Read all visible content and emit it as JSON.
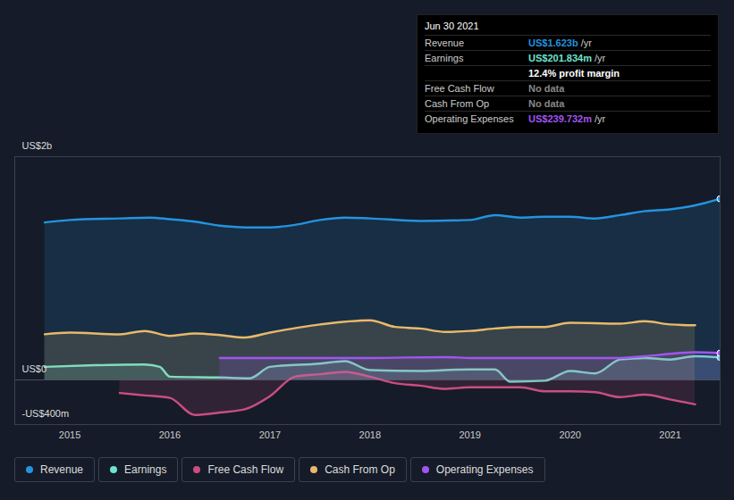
{
  "chart_data": {
    "type": "line",
    "grid": true,
    "legend": "bottom",
    "xlim": [
      2014.45,
      2021.5
    ],
    "xticks": [
      2015,
      2016,
      2017,
      2018,
      2019,
      2020,
      2021
    ],
    "ylim": [
      -400,
      2000
    ],
    "yticks": [
      {
        "value": 2000,
        "label": "US$2b"
      },
      {
        "value": 0,
        "label": "US$0"
      },
      {
        "value": -400,
        "label": "-US$400m"
      }
    ],
    "series": [
      {
        "name": "Revenue",
        "color": "#2394df",
        "x": [
          2014.75,
          2015,
          2015.5,
          2015.8,
          2016,
          2016.25,
          2016.5,
          2016.75,
          2017,
          2017.25,
          2017.5,
          2017.75,
          2018,
          2018.5,
          2019,
          2019.25,
          2019.5,
          2019.75,
          2020,
          2020.25,
          2020.5,
          2020.75,
          2021,
          2021.25,
          2021.5
        ],
        "values": [
          1411,
          1433,
          1447,
          1455,
          1440,
          1418,
          1382,
          1367,
          1367,
          1389,
          1433,
          1455,
          1447,
          1425,
          1433,
          1477,
          1455,
          1462,
          1462,
          1447,
          1477,
          1513,
          1528,
          1564,
          1623
        ]
      },
      {
        "name": "Earnings",
        "color": "#6fe3cf",
        "x": [
          2014.75,
          2015.25,
          2015.75,
          2015.9,
          2016,
          2016.5,
          2016.8,
          2017,
          2017.5,
          2017.75,
          2018,
          2018.5,
          2019,
          2019.25,
          2019.4,
          2019.75,
          2020,
          2020.25,
          2020.5,
          2020.75,
          2021,
          2021.25,
          2021.5
        ],
        "values": [
          117,
          132,
          139,
          117,
          29,
          22,
          15,
          117,
          146,
          168,
          88,
          80,
          95,
          95,
          -15,
          -7,
          80,
          58,
          183,
          197,
          183,
          212,
          202
        ]
      },
      {
        "name": "Free Cash Flow",
        "color": "#c94e80",
        "x": [
          2015.5,
          2015.75,
          2016,
          2016.25,
          2016.5,
          2016.75,
          2017,
          2017.25,
          2017.5,
          2017.75,
          2018,
          2018.25,
          2018.5,
          2018.75,
          2019,
          2019.5,
          2019.75,
          2020,
          2020.25,
          2020.5,
          2020.75,
          2021,
          2021.25
        ],
        "values": [
          -117,
          -139,
          -161,
          -314,
          -292,
          -263,
          -146,
          29,
          51,
          73,
          29,
          -29,
          -51,
          -80,
          -66,
          -66,
          -102,
          -102,
          -110,
          -154,
          -132,
          -175,
          -219
        ]
      },
      {
        "name": "Cash From Op",
        "color": "#e9b96a",
        "x": [
          2014.75,
          2015,
          2015.5,
          2015.75,
          2016,
          2016.25,
          2016.5,
          2016.75,
          2017,
          2017.5,
          2018,
          2018.25,
          2018.5,
          2018.75,
          2019,
          2019.25,
          2019.5,
          2019.75,
          2020,
          2020.5,
          2020.75,
          2021,
          2021.25
        ],
        "values": [
          409,
          424,
          409,
          439,
          395,
          417,
          402,
          380,
          424,
          497,
          534,
          475,
          461,
          431,
          439,
          461,
          475,
          475,
          512,
          504,
          526,
          497,
          490
        ]
      },
      {
        "name": "Operating Expenses",
        "color": "#a155f2",
        "x": [
          2016.5,
          2017,
          2018,
          2018.75,
          2019,
          2020,
          2020.5,
          2020.75,
          2021,
          2021.25,
          2021.5
        ],
        "values": [
          197,
          197,
          197,
          205,
          197,
          197,
          197,
          212,
          234,
          249,
          240
        ]
      }
    ],
    "tooltip": {
      "title": "Jun 30 2021",
      "rows": [
        {
          "label": "Revenue",
          "value": "US$1.623b",
          "unit": "/yr",
          "color": "#2394df"
        },
        {
          "label": "Earnings",
          "value": "US$201.834m",
          "unit": "/yr",
          "color": "#6fe3cf"
        },
        {
          "value": "12.4% profit margin",
          "color": "#ffffff"
        },
        {
          "label": "Free Cash Flow",
          "value": "No data",
          "color": "#888888"
        },
        {
          "label": "Cash From Op",
          "value": "No data",
          "color": "#888888"
        },
        {
          "label": "Operating Expenses",
          "value": "US$239.732m",
          "unit": "/yr",
          "color": "#a155f2"
        }
      ]
    }
  }
}
